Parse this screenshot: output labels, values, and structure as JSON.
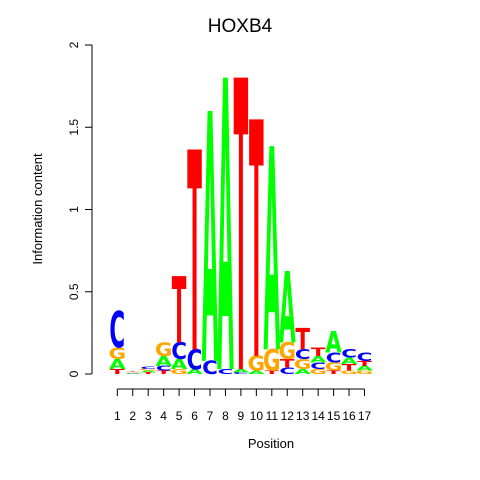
{
  "chart_data": {
    "type": "sequence-logo",
    "title": "HOXB4",
    "xlabel": "Position",
    "ylabel": "Information content",
    "ylim": [
      0,
      2
    ],
    "y_ticks": [
      "0",
      "0.5",
      "1",
      "1.5",
      "2"
    ],
    "x_ticks": [
      "1",
      "2",
      "3",
      "4",
      "5",
      "6",
      "7",
      "8",
      "9",
      "10",
      "11",
      "12",
      "13",
      "14",
      "15",
      "16",
      "17"
    ],
    "colors": {
      "A": "#00ff00",
      "C": "#0000ff",
      "G": "#ffa500",
      "T": "#ff0000"
    },
    "positions": [
      [
        [
          "T",
          0.03
        ],
        [
          "A",
          0.06
        ],
        [
          "G",
          0.07
        ],
        [
          "C",
          0.22
        ]
      ],
      [
        [
          "A",
          0.004
        ],
        [
          "C",
          0.004
        ],
        [
          "G",
          0.004
        ],
        [
          "T",
          0.004
        ]
      ],
      [
        [
          "T",
          0.01
        ],
        [
          "A",
          0.01
        ],
        [
          "G",
          0.01
        ],
        [
          "C",
          0.015
        ]
      ],
      [
        [
          "T",
          0.02
        ],
        [
          "C",
          0.03
        ],
        [
          "A",
          0.06
        ],
        [
          "G",
          0.08
        ]
      ],
      [
        [
          "G",
          0.03
        ],
        [
          "A",
          0.06
        ],
        [
          "C",
          0.1
        ],
        [
          "T",
          0.4
        ]
      ],
      [
        [
          "A",
          0.03
        ],
        [
          "C",
          0.12
        ],
        [
          "T",
          1.2
        ]
      ],
      [
        [
          "C",
          0.08
        ],
        [
          "A",
          1.5
        ]
      ],
      [
        [
          "C",
          0.03
        ],
        [
          "A",
          1.75
        ]
      ],
      [
        [
          "C",
          0.01
        ],
        [
          "A",
          0.02
        ],
        [
          "T",
          1.75
        ]
      ],
      [
        [
          "A",
          0.02
        ],
        [
          "G",
          0.09
        ],
        [
          "T",
          1.42
        ]
      ],
      [
        [
          "T",
          0.02
        ],
        [
          "G",
          0.13
        ],
        [
          "A",
          1.22
        ]
      ],
      [
        [
          "C",
          0.04
        ],
        [
          "T",
          0.05
        ],
        [
          "G",
          0.1
        ],
        [
          "A",
          0.43
        ]
      ],
      [
        [
          "A",
          0.03
        ],
        [
          "G",
          0.06
        ],
        [
          "C",
          0.06
        ],
        [
          "T",
          0.13
        ]
      ],
      [
        [
          "G",
          0.03
        ],
        [
          "C",
          0.04
        ],
        [
          "A",
          0.04
        ],
        [
          "T",
          0.05
        ]
      ],
      [
        [
          "T",
          0.02
        ],
        [
          "G",
          0.05
        ],
        [
          "C",
          0.06
        ],
        [
          "A",
          0.13
        ]
      ],
      [
        [
          "G",
          0.02
        ],
        [
          "T",
          0.04
        ],
        [
          "A",
          0.04
        ],
        [
          "C",
          0.05
        ]
      ],
      [
        [
          "G",
          0.02
        ],
        [
          "A",
          0.03
        ],
        [
          "T",
          0.03
        ],
        [
          "C",
          0.05
        ]
      ]
    ]
  }
}
